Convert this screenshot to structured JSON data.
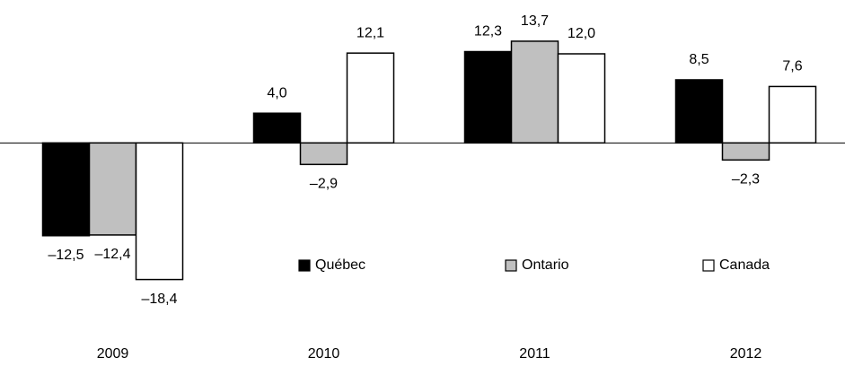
{
  "chart_data": {
    "type": "bar",
    "categories": [
      "2009",
      "2010",
      "2011",
      "2012"
    ],
    "series": [
      {
        "name": "Québec",
        "color": "#000000",
        "values": [
          -12.5,
          4.0,
          12.3,
          8.5
        ],
        "value_labels": [
          "–12,5",
          "4,0",
          "12,3",
          "8,5"
        ]
      },
      {
        "name": "Ontario",
        "color": "#c0c0c0",
        "values": [
          -12.4,
          -2.9,
          13.7,
          -2.3
        ],
        "value_labels": [
          "–12,4",
          "–2,9",
          "13,7",
          "–2,3"
        ]
      },
      {
        "name": "Canada",
        "color": "#ffffff",
        "values": [
          -18.4,
          12.1,
          12.0,
          7.6
        ],
        "value_labels": [
          "–18,4",
          "12,1",
          "12,0",
          "7,6"
        ]
      }
    ],
    "ylim": [
      -30,
      19.25
    ],
    "legend": "center"
  }
}
